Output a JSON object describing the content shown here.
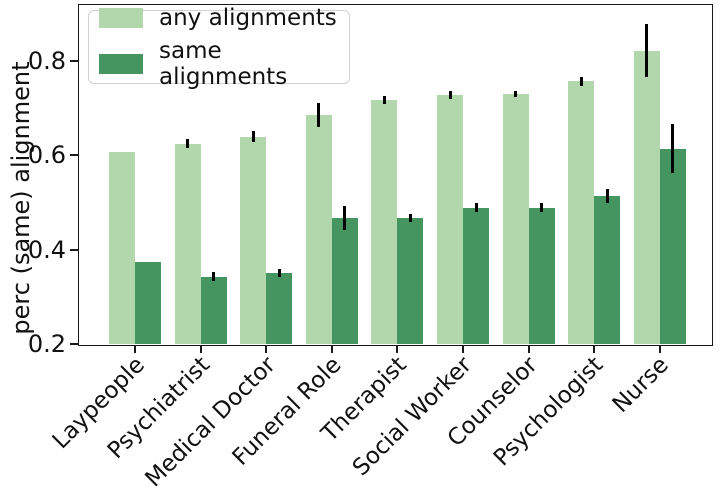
{
  "y_axis": {
    "label": "perc (same) alignment",
    "tick_labels": [
      "0.2",
      "0.4",
      "0.6",
      "0.8"
    ]
  },
  "legend": {
    "position": "upper left",
    "items": [
      {
        "label": "any alignments",
        "color": "#b3d7ac"
      },
      {
        "label": "same alignments",
        "color": "#459560"
      }
    ]
  },
  "chart_data": {
    "type": "bar",
    "title": "",
    "xlabel": "",
    "ylabel": "perc (same) alignment",
    "categories": [
      "Laypeople",
      "Psychiatrist",
      "Medical Doctor",
      "Funeral Role",
      "Therapist",
      "Social Worker",
      "Counselor",
      "Psychologist",
      "Nurse"
    ],
    "series": [
      {
        "name": "any alignments",
        "color": "#b3d7ac",
        "values": [
          0.607,
          0.625,
          0.64,
          0.686,
          0.718,
          0.728,
          0.73,
          0.757,
          0.822
        ],
        "errors": [
          0,
          0.01,
          0.012,
          0.025,
          0.008,
          0.008,
          0.007,
          0.01,
          0.056
        ]
      },
      {
        "name": "same alignments",
        "color": "#459560",
        "values": [
          0.374,
          0.343,
          0.351,
          0.467,
          0.467,
          0.489,
          0.489,
          0.514,
          0.614
        ],
        "errors": [
          0,
          0.01,
          0.008,
          0.026,
          0.009,
          0.01,
          0.009,
          0.015,
          0.052
        ]
      }
    ],
    "ylim": [
      0.2,
      0.919
    ],
    "yticks": [
      0.2,
      0.4,
      0.6,
      0.8
    ],
    "x_tick_rotation_deg": 45,
    "grid": false,
    "error_bar_color": "#000000",
    "legend_position": "upper left"
  }
}
